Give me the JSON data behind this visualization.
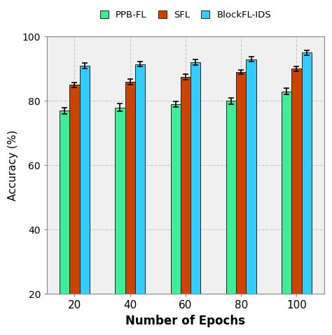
{
  "epochs": [
    20,
    40,
    60,
    80,
    100
  ],
  "ppb_fl": [
    77.0,
    78.0,
    79.0,
    80.0,
    83.0
  ],
  "sfl": [
    85.0,
    86.0,
    87.5,
    89.0,
    90.0
  ],
  "blockfl_ids": [
    91.0,
    91.5,
    92.0,
    93.0,
    95.0
  ],
  "ppb_fl_err": [
    1.0,
    1.2,
    0.9,
    1.0,
    1.0
  ],
  "sfl_err": [
    0.7,
    0.8,
    0.8,
    0.7,
    0.8
  ],
  "blockfl_err": [
    0.8,
    0.7,
    0.9,
    0.8,
    0.8
  ],
  "color_ppb": "#3DED97",
  "color_sfl": "#CC4400",
  "color_block": "#33CCFF",
  "xlabel": "Number of Epochs",
  "ylabel": "Accuracy (%)",
  "ylim": [
    20,
    100
  ],
  "yticks": [
    20,
    40,
    60,
    80,
    100
  ],
  "legend_labels": [
    "PPB-FL",
    "SFL",
    "BlockFL-IDS"
  ],
  "bar_width": 0.18,
  "edgecolor": "#222222",
  "grid_color": "#c8c8c8",
  "plot_bg": "#f0f0f0"
}
